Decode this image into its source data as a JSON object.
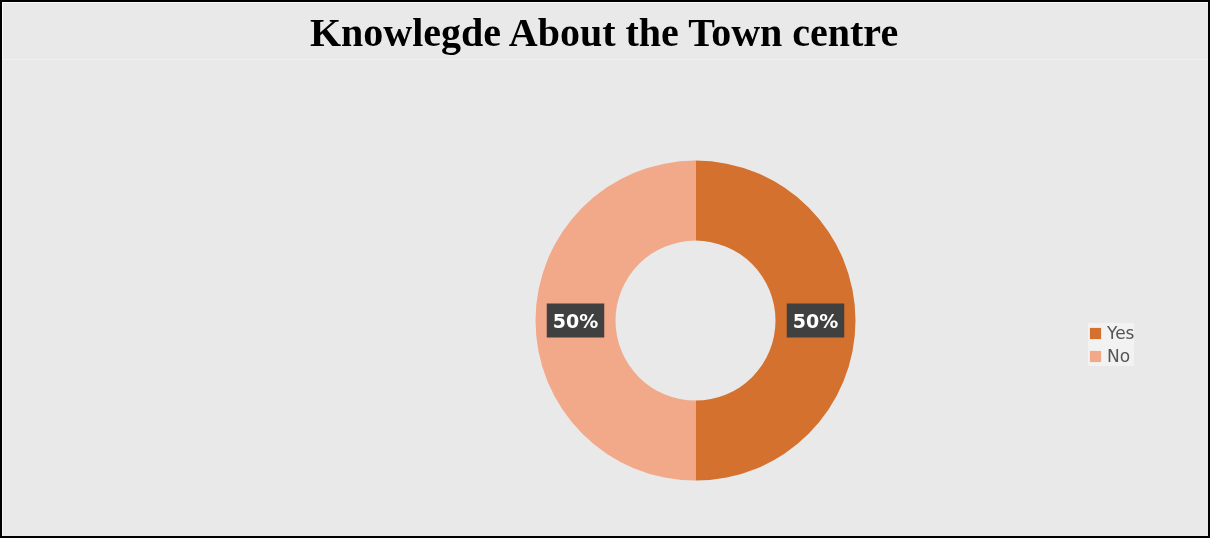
{
  "chart_data": {
    "type": "donut",
    "title": "Knowlegde About the Town centre",
    "categories": [
      "Yes",
      "No"
    ],
    "values": [
      50,
      50
    ],
    "colors": [
      "#d4712e",
      "#f1a98a"
    ],
    "value_labels": [
      "50%",
      "50%"
    ],
    "legend": "right"
  }
}
